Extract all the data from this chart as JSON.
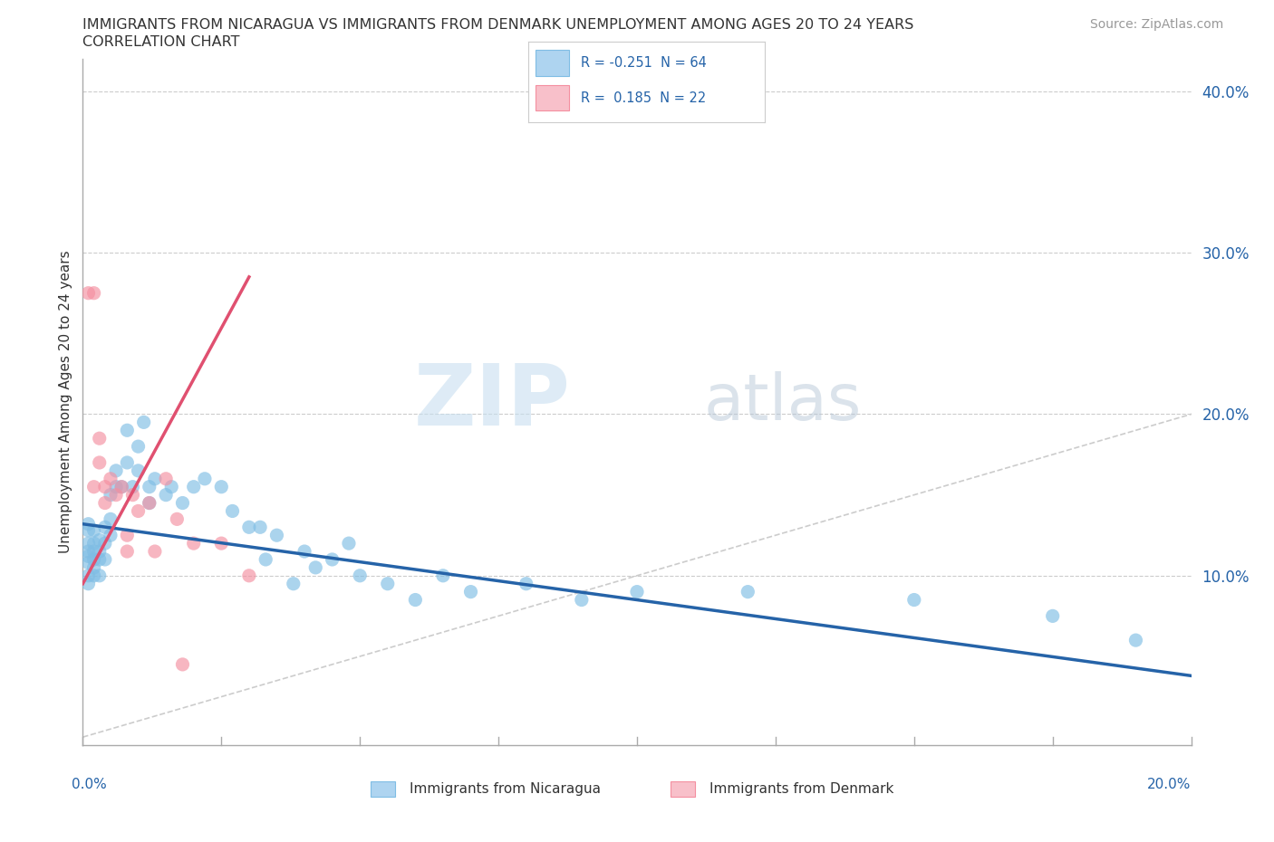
{
  "title_line1": "IMMIGRANTS FROM NICARAGUA VS IMMIGRANTS FROM DENMARK UNEMPLOYMENT AMONG AGES 20 TO 24 YEARS",
  "title_line2": "CORRELATION CHART",
  "source": "Source: ZipAtlas.com",
  "ylabel": "Unemployment Among Ages 20 to 24 years",
  "xlim": [
    0.0,
    0.2
  ],
  "ylim": [
    -0.005,
    0.42
  ],
  "yticks": [
    0.0,
    0.1,
    0.2,
    0.3,
    0.4
  ],
  "ytick_labels": [
    "",
    "10.0%",
    "20.0%",
    "30.0%",
    "40.0%"
  ],
  "nicaragua_color": "#7fbde4",
  "denmark_color": "#f48fa0",
  "trendline_nicaragua_color": "#2563a8",
  "trendline_denmark_color": "#e05070",
  "diagonal_color": "#cccccc",
  "nic_R": -0.251,
  "nic_N": 64,
  "den_R": 0.185,
  "den_N": 22,
  "nicaragua_x": [
    0.001,
    0.001,
    0.001,
    0.001,
    0.001,
    0.001,
    0.001,
    0.001,
    0.002,
    0.002,
    0.002,
    0.002,
    0.002,
    0.002,
    0.003,
    0.003,
    0.003,
    0.003,
    0.004,
    0.004,
    0.004,
    0.005,
    0.005,
    0.005,
    0.006,
    0.006,
    0.007,
    0.008,
    0.008,
    0.009,
    0.01,
    0.01,
    0.011,
    0.012,
    0.012,
    0.013,
    0.015,
    0.016,
    0.018,
    0.02,
    0.022,
    0.025,
    0.027,
    0.03,
    0.032,
    0.033,
    0.035,
    0.038,
    0.04,
    0.042,
    0.045,
    0.048,
    0.05,
    0.055,
    0.06,
    0.065,
    0.07,
    0.08,
    0.09,
    0.1,
    0.12,
    0.15,
    0.175,
    0.19
  ],
  "nicaragua_y": [
    0.132,
    0.128,
    0.12,
    0.115,
    0.112,
    0.108,
    0.1,
    0.095,
    0.128,
    0.12,
    0.115,
    0.11,
    0.105,
    0.1,
    0.122,
    0.115,
    0.11,
    0.1,
    0.13,
    0.12,
    0.11,
    0.15,
    0.135,
    0.125,
    0.165,
    0.155,
    0.155,
    0.19,
    0.17,
    0.155,
    0.18,
    0.165,
    0.195,
    0.155,
    0.145,
    0.16,
    0.15,
    0.155,
    0.145,
    0.155,
    0.16,
    0.155,
    0.14,
    0.13,
    0.13,
    0.11,
    0.125,
    0.095,
    0.115,
    0.105,
    0.11,
    0.12,
    0.1,
    0.095,
    0.085,
    0.1,
    0.09,
    0.095,
    0.085,
    0.09,
    0.09,
    0.085,
    0.075,
    0.06
  ],
  "denmark_x": [
    0.001,
    0.002,
    0.002,
    0.003,
    0.003,
    0.004,
    0.004,
    0.005,
    0.006,
    0.007,
    0.008,
    0.008,
    0.009,
    0.01,
    0.012,
    0.013,
    0.015,
    0.017,
    0.018,
    0.02,
    0.025,
    0.03
  ],
  "denmark_y": [
    0.275,
    0.275,
    0.155,
    0.185,
    0.17,
    0.155,
    0.145,
    0.16,
    0.15,
    0.155,
    0.125,
    0.115,
    0.15,
    0.14,
    0.145,
    0.115,
    0.16,
    0.135,
    0.045,
    0.12,
    0.12,
    0.1
  ]
}
